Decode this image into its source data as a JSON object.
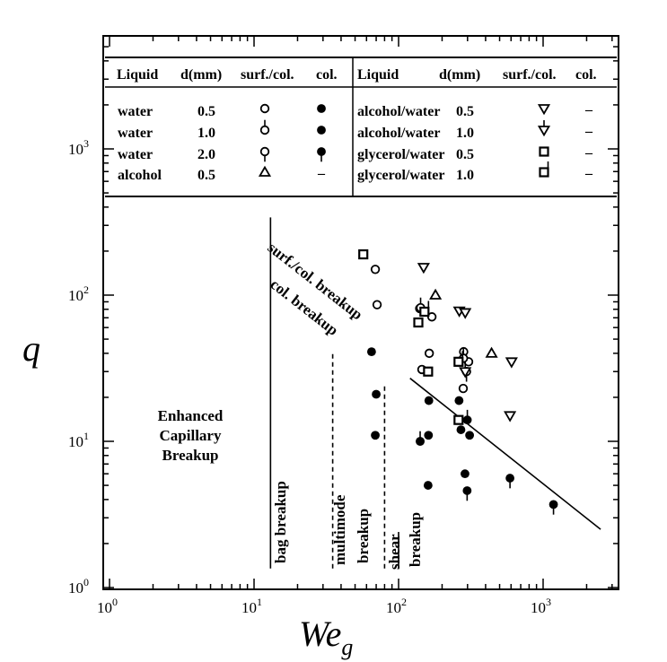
{
  "chart_data": {
    "type": "scatter",
    "x_scale": "log",
    "y_scale": "log",
    "xlim": [
      1,
      3500
    ],
    "ylim": [
      1,
      5000
    ],
    "xlabel": "We",
    "xlabel_subscript": "g",
    "ylabel": "q",
    "x_ticks": [
      {
        "v": 1,
        "base": "10",
        "exp": "0"
      },
      {
        "v": 10,
        "base": "10",
        "exp": "1"
      },
      {
        "v": 100,
        "base": "10",
        "exp": "2"
      },
      {
        "v": 1000,
        "base": "10",
        "exp": "3"
      }
    ],
    "y_ticks": [
      {
        "v": 1,
        "base": "10",
        "exp": "0"
      },
      {
        "v": 10,
        "base": "10",
        "exp": "1"
      },
      {
        "v": 100,
        "base": "10",
        "exp": "2"
      },
      {
        "v": 1000,
        "base": "10",
        "exp": "3"
      }
    ],
    "legend": {
      "headers": {
        "liquid": "Liquid",
        "d": "d(mm)",
        "surf": "surf./col.",
        "col": "col."
      },
      "left_rows": [
        {
          "liquid": "water",
          "d": "0.5",
          "surf_marker": "open_circle",
          "col_marker": "filled_circle",
          "col_text": ""
        },
        {
          "liquid": "water",
          "d": "1.0",
          "surf_marker": "open_circle_tick_up",
          "col_marker": "filled_circle",
          "col_text": ""
        },
        {
          "liquid": "water",
          "d": "2.0",
          "surf_marker": "open_circle_tick_down",
          "col_marker": "filled_circle_tick_down",
          "col_text": ""
        },
        {
          "liquid": "alcohol",
          "d": "0.5",
          "surf_marker": "open_triangle_up",
          "col_marker": "",
          "col_text": "–"
        }
      ],
      "right_rows": [
        {
          "liquid": "alcohol/water",
          "d": "0.5",
          "surf_marker": "open_triangle_down",
          "col_text": "–"
        },
        {
          "liquid": "alcohol/water",
          "d": "1.0",
          "surf_marker": "open_triangle_down_tick",
          "col_text": "–"
        },
        {
          "liquid": "glycerol/water",
          "d": "0.5",
          "surf_marker": "open_square",
          "col_text": "–"
        },
        {
          "liquid": "glycerol/water",
          "d": "1.0",
          "surf_marker": "open_square_tick",
          "col_text": "–"
        }
      ]
    },
    "regime_labels": {
      "enhanced": [
        "Enhanced",
        "Capillary",
        "Breakup"
      ],
      "bag": "bag breakup",
      "multimode": [
        "multimode",
        "breakup"
      ],
      "shear": [
        "shear",
        "breakup"
      ],
      "surf_col": "surf./col. breakup",
      "col": "col. breakup"
    },
    "boundaries": [
      {
        "name": "bag",
        "style": "solid",
        "x": 13,
        "y_range": [
          1.35,
          340
        ]
      },
      {
        "name": "multimode-left",
        "style": "dashed",
        "x": 35,
        "y_range": [
          1.35,
          40
        ]
      },
      {
        "name": "multimode-right",
        "style": "dashed",
        "x": 80,
        "y_range": [
          1.35,
          25
        ]
      },
      {
        "name": "shear-left",
        "style": "solid",
        "x": 100,
        "y_range": [
          1.35,
          2.4
        ]
      }
    ],
    "col_breakup_line": {
      "points": [
        [
          13,
          290
        ],
        [
          60,
          42
        ],
        [
          120,
          27
        ],
        [
          2500,
          2.5
        ]
      ]
    },
    "series": [
      {
        "marker": "open_circle",
        "points": [
          [
            69,
            150
          ],
          [
            71,
            86
          ],
          [
            140,
            81
          ],
          [
            145,
            31
          ],
          [
            163,
            40
          ],
          [
            170,
            71
          ],
          [
            282,
            41
          ],
          [
            280,
            23
          ],
          [
            305,
            35
          ]
        ]
      },
      {
        "marker": "open_circle_tick_up",
        "points": [
          [
            142,
            82
          ],
          [
            281,
            37
          ]
        ]
      },
      {
        "marker": "open_circle_tick_down",
        "points": [
          [
            295,
            30
          ]
        ]
      },
      {
        "marker": "filled_circle",
        "points": [
          [
            65,
            41
          ],
          [
            70,
            21
          ],
          [
            69,
            11
          ],
          [
            162,
            19
          ],
          [
            141,
            10
          ],
          [
            161,
            11
          ],
          [
            262,
            19
          ],
          [
            270,
            12
          ],
          [
            288,
            6
          ],
          [
            310,
            11
          ],
          [
            160,
            5
          ]
        ]
      },
      {
        "marker": "filled_circle_tick_up",
        "points": [
          [
            141,
            10
          ],
          [
            299,
            14
          ]
        ]
      },
      {
        "marker": "filled_circle_tick_down",
        "points": [
          [
            298,
            4.6
          ],
          [
            590,
            5.6
          ],
          [
            1180,
            3.7
          ]
        ]
      },
      {
        "marker": "open_triangle_up",
        "points": [
          [
            180,
            100
          ],
          [
            440,
            40
          ]
        ]
      },
      {
        "marker": "open_triangle_down",
        "points": [
          [
            149,
            155
          ],
          [
            263,
            78
          ],
          [
            289,
            76
          ],
          [
            605,
            35
          ],
          [
            590,
            15
          ]
        ]
      },
      {
        "marker": "open_triangle_down_tick",
        "points": [
          [
            289,
            30
          ]
        ]
      },
      {
        "marker": "open_square",
        "points": [
          [
            57,
            190
          ],
          [
            137,
            65
          ],
          [
            160,
            30
          ],
          [
            260,
            14
          ]
        ]
      },
      {
        "marker": "open_square_tick",
        "points": [
          [
            151,
            77
          ],
          [
            260,
            35
          ]
        ]
      }
    ]
  }
}
